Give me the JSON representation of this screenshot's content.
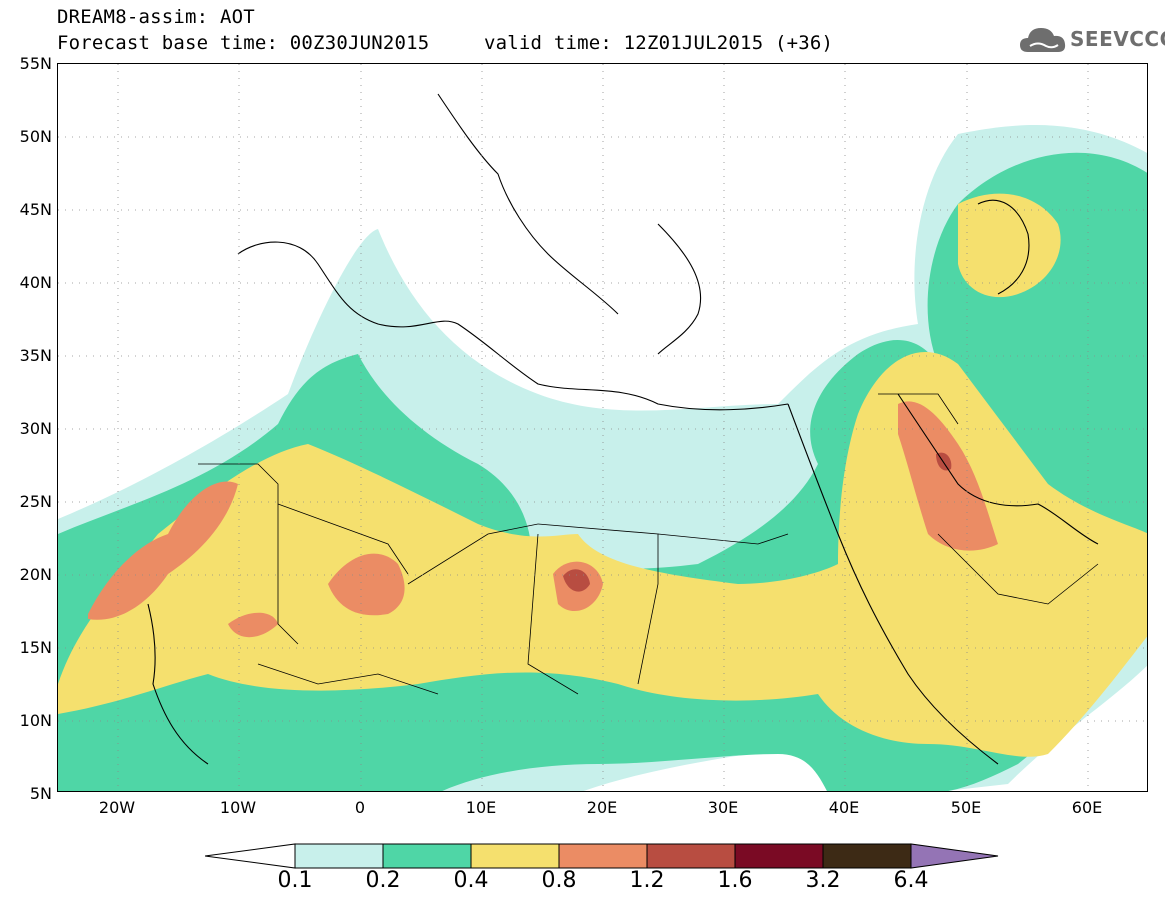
{
  "header": {
    "title": "DREAM8-assim: AOT",
    "forecast_base": "Forecast base time: 00Z30JUN2015",
    "valid_time": "valid time: 12Z01JUL2015 (+36)"
  },
  "logo": {
    "text": "SEEVCCC",
    "icon": "cloud-icon"
  },
  "map": {
    "lat_labels": [
      "55N",
      "50N",
      "45N",
      "40N",
      "35N",
      "30N",
      "25N",
      "20N",
      "15N",
      "10N",
      "5N"
    ],
    "lon_labels": [
      "20W",
      "10W",
      "0",
      "10E",
      "20E",
      "30E",
      "40E",
      "50E",
      "60E"
    ],
    "lat_range": [
      5,
      55
    ],
    "lon_range": [
      -25,
      65
    ],
    "grid": "dotted",
    "projection": "lat-lon"
  },
  "colorbar": {
    "labels": [
      "0.1",
      "0.2",
      "0.4",
      "0.8",
      "1.2",
      "1.6",
      "3.2",
      "6.4"
    ],
    "colors": {
      "c1": "#c8f0eb",
      "c2": "#4fd6a6",
      "c3": "#f5e06e",
      "c4": "#eb8c64",
      "c5": "#b84d41",
      "c6": "#7a0a24",
      "c7": "#3d2a15",
      "over": "#9474b5",
      "under": "#ffffff"
    }
  }
}
